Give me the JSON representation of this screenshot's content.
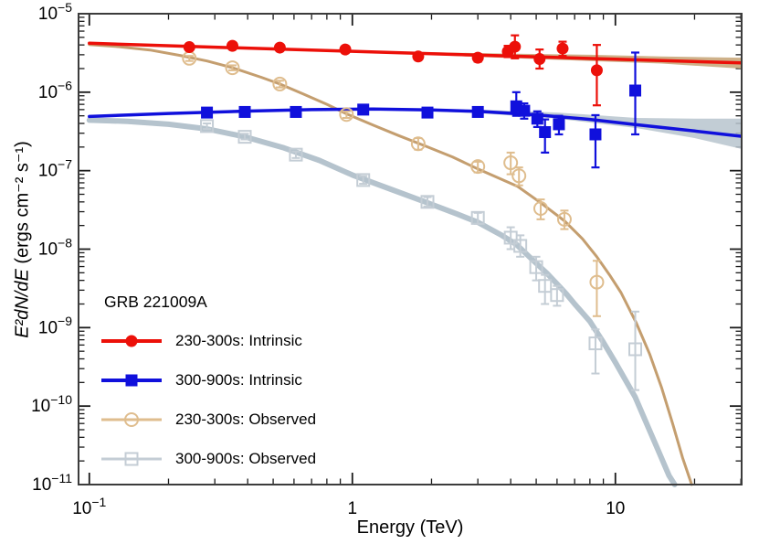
{
  "chart_data": {
    "type": "line",
    "title": "GRB 221009A",
    "xlabel": "Energy (TeV)",
    "ylabel_math": "E²dN/dE",
    "ylabel_units": " (ergs cm⁻² s⁻¹)",
    "xscale": "log",
    "yscale": "log",
    "xlim": [
      0.091,
      30.2
    ],
    "ylim": [
      1e-11,
      1e-05
    ],
    "ylim_exp": [
      -11,
      -5
    ],
    "grid": false,
    "legend_position": "inside-middle-left",
    "frame_color": "#3c3c3c",
    "tick_color": "#1a1a1a",
    "x_tick_labels": [
      {
        "value": 0.1,
        "base": "10",
        "exp": "−1"
      },
      {
        "value": 1,
        "base": "1",
        "exp": ""
      },
      {
        "value": 10,
        "base": "10",
        "exp": ""
      }
    ],
    "y_tick_labels": [
      {
        "value": 1e-05,
        "base": "10",
        "exp": "−5"
      },
      {
        "value": 1e-06,
        "base": "10",
        "exp": "−6"
      },
      {
        "value": 1e-07,
        "base": "10",
        "exp": "−7"
      },
      {
        "value": 1e-08,
        "base": "10",
        "exp": "−8"
      },
      {
        "value": 1e-09,
        "base": "10",
        "exp": "−9"
      },
      {
        "value": 1e-10,
        "base": "10",
        "exp": "−10"
      },
      {
        "value": 1e-11,
        "base": "10",
        "exp": "−11"
      }
    ],
    "series": [
      {
        "key": "intrinsic-230-300",
        "name": "230-300s: Intrinsic",
        "color": "#ec1009",
        "line_width": 3.5,
        "legend_line_width": 4,
        "marker": "circle",
        "filled": true,
        "marker_size": 13,
        "err_width": 2.2,
        "z": 3,
        "band_color": "#c9a87c",
        "band_opacity": 0.9,
        "band": [
          [
            1.2,
            3.2e-06,
            3.35e-06
          ],
          [
            3,
            2.82e-06,
            3.15e-06
          ],
          [
            8,
            2.5e-06,
            3e-06
          ],
          [
            15,
            2.32e-06,
            2.85e-06
          ],
          [
            30,
            2e-06,
            2.75e-06
          ]
        ],
        "curve": [
          [
            0.1,
            4.2e-06
          ],
          [
            0.3,
            3.75e-06
          ],
          [
            1,
            3.32e-06
          ],
          [
            3,
            2.97e-06
          ],
          [
            10,
            2.63e-06
          ],
          [
            30,
            2.36e-06
          ]
        ],
        "points": [
          [
            0.24,
            3.75e-06,
            3.5e-06,
            4e-06
          ],
          [
            0.35,
            3.9e-06,
            3.65e-06,
            4.15e-06
          ],
          [
            0.53,
            3.7e-06,
            3.45e-06,
            3.95e-06
          ],
          [
            0.94,
            3.5e-06,
            3.3e-06,
            3.75e-06
          ],
          [
            1.78,
            2.85e-06,
            2.6e-06,
            3.1e-06
          ],
          [
            3.0,
            2.75e-06,
            2.45e-06,
            3.05e-06
          ],
          [
            3.9,
            3.3e-06,
            2.8e-06,
            3.9e-06
          ],
          [
            4.15,
            3.8e-06,
            2.7e-06,
            5.3e-06
          ],
          [
            5.15,
            2.65e-06,
            2e-06,
            3.5e-06
          ],
          [
            6.3,
            3.6e-06,
            2.9e-06,
            4.4e-06
          ],
          [
            8.5,
            1.9e-06,
            6.8e-07,
            4e-06
          ]
        ]
      },
      {
        "key": "intrinsic-300-900",
        "name": "300-900s: Intrinsic",
        "color": "#1010dc",
        "line_width": 3.5,
        "legend_line_width": 4,
        "marker": "square",
        "filled": true,
        "marker_size": 13,
        "err_width": 2.2,
        "z": 4,
        "band_color": "#b7c4ce",
        "band_opacity": 0.85,
        "band": [
          [
            1.5,
            5.95e-07,
            6.2e-07
          ],
          [
            3,
            5.4e-07,
            6e-07
          ],
          [
            6,
            4.6e-07,
            5.5e-07
          ],
          [
            12,
            3.5e-07,
            4.7e-07
          ],
          [
            20,
            2.6e-07,
            4.6e-07
          ],
          [
            30,
            1.9e-07,
            4.6e-07
          ]
        ],
        "curve": [
          [
            0.1,
            4.9e-07
          ],
          [
            0.2,
            5.35e-07
          ],
          [
            0.4,
            5.75e-07
          ],
          [
            0.7,
            6e-07
          ],
          [
            1.2,
            6.1e-07
          ],
          [
            2,
            5.95e-07
          ],
          [
            3,
            5.7e-07
          ],
          [
            5,
            5.15e-07
          ],
          [
            8,
            4.5e-07
          ],
          [
            12,
            3.85e-07
          ],
          [
            20,
            3.2e-07
          ],
          [
            30,
            2.75e-07
          ]
        ],
        "points": [
          [
            0.28,
            5.5e-07,
            5.1e-07,
            5.9e-07
          ],
          [
            0.39,
            5.6e-07,
            5.2e-07,
            6e-07
          ],
          [
            0.61,
            5.6e-07,
            5.2e-07,
            6e-07
          ],
          [
            1.1,
            6e-07,
            5.6e-07,
            6.4e-07
          ],
          [
            1.93,
            5.5e-07,
            5e-07,
            6e-07
          ],
          [
            3.0,
            5.6e-07,
            5e-07,
            6.2e-07
          ],
          [
            4.2,
            6.6e-07,
            5e-07,
            1e-06
          ],
          [
            4.5,
            5.8e-07,
            4.6e-07,
            7.2e-07
          ],
          [
            5.05,
            4.6e-07,
            3.6e-07,
            5.7e-07
          ],
          [
            5.4,
            3.1e-07,
            1.7e-07,
            4.5e-07
          ],
          [
            6.1,
            3.9e-07,
            2.9e-07,
            5e-07
          ],
          [
            8.4,
            2.9e-07,
            1.1e-07,
            5.1e-07
          ],
          [
            11.9,
            1.05e-06,
            2.9e-07,
            3.2e-06
          ]
        ]
      },
      {
        "key": "observed-230-300",
        "name": "230-300s: Observed",
        "color": "#dfbd8e",
        "line_color": "#c49e6f",
        "line_width": 3,
        "legend_line_width": 3,
        "marker": "circle",
        "filled": false,
        "marker_size": 14,
        "err_width": 2,
        "z": 1,
        "curve": [
          [
            0.1,
            4.05e-06
          ],
          [
            0.13,
            3.8e-06
          ],
          [
            0.17,
            3.45e-06
          ],
          [
            0.22,
            2.95e-06
          ],
          [
            0.28,
            2.5e-06
          ],
          [
            0.35,
            2.05e-06
          ],
          [
            0.45,
            1.55e-06
          ],
          [
            0.53,
            1.27e-06
          ],
          [
            0.65,
            9.5e-07
          ],
          [
            0.8,
            7e-07
          ],
          [
            0.95,
            5.3e-07
          ],
          [
            1.2,
            3.8e-07
          ],
          [
            1.5,
            2.8e-07
          ],
          [
            1.9,
            2.05e-07
          ],
          [
            2.4,
            1.5e-07
          ],
          [
            3,
            1.05e-07
          ],
          [
            4.25,
            6.3e-08
          ],
          [
            5.2,
            3.9e-08
          ],
          [
            6.4,
            2.3e-08
          ],
          [
            7.5,
            1.35e-08
          ],
          [
            8.5,
            8e-09
          ],
          [
            9.5,
            4.7e-09
          ],
          [
            10.5,
            2.8e-09
          ],
          [
            12,
            1.15e-09
          ],
          [
            13.5,
            4.6e-10
          ],
          [
            15,
            1.7e-10
          ],
          [
            16.5,
            6e-11
          ],
          [
            18,
            2.2e-11
          ],
          [
            19.5,
            1e-11
          ]
        ],
        "points": [
          [
            0.24,
            2.7e-06,
            2.5e-06,
            2.9e-06
          ],
          [
            0.35,
            2.05e-06,
            1.9e-06,
            2.2e-06
          ],
          [
            0.53,
            1.27e-06,
            1.15e-06,
            1.4e-06
          ],
          [
            0.95,
            5.2e-07,
            4.7e-07,
            5.7e-07
          ],
          [
            1.78,
            2.2e-07,
            1.85e-07,
            2.6e-07
          ],
          [
            3.0,
            1.13e-07,
            9.5e-08,
            1.3e-07
          ],
          [
            4.0,
            1.26e-07,
            9e-08,
            1.7e-07
          ],
          [
            4.3,
            8.6e-08,
            6.5e-08,
            1.1e-07
          ],
          [
            5.2,
            3.3e-08,
            2.4e-08,
            4.3e-08
          ],
          [
            6.4,
            2.4e-08,
            1.8e-08,
            3.1e-08
          ],
          [
            8.5,
            3.8e-09,
            1.4e-09,
            7.1e-09
          ]
        ]
      },
      {
        "key": "observed-300-900",
        "name": "300-900s: Observed",
        "color": "#c4cdd5",
        "line_color": "#b5c3cd",
        "line_width": 6,
        "legend_line_width": 3,
        "marker": "square",
        "filled": false,
        "marker_size": 13,
        "err_width": 2,
        "z": 2,
        "curve": [
          [
            0.1,
            4.4e-07
          ],
          [
            0.14,
            4.25e-07
          ],
          [
            0.2,
            3.9e-07
          ],
          [
            0.28,
            3.4e-07
          ],
          [
            0.39,
            2.7e-07
          ],
          [
            0.55,
            1.95e-07
          ],
          [
            0.75,
            1.35e-07
          ],
          [
            1.0,
            8.8e-08
          ],
          [
            1.4,
            5.8e-08
          ],
          [
            1.93,
            3.9e-08
          ],
          [
            2.5,
            2.8e-08
          ],
          [
            3.0,
            2.2e-08
          ],
          [
            3.7,
            1.5e-08
          ],
          [
            4.2,
            1.15e-08
          ],
          [
            5.0,
            6.6e-09
          ],
          [
            5.5,
            4.9e-09
          ],
          [
            6.0,
            3.6e-09
          ],
          [
            6.5,
            2.7e-09
          ],
          [
            7.0,
            2e-09
          ],
          [
            8.0,
            1.2e-09
          ],
          [
            9.0,
            6.5e-10
          ],
          [
            10.0,
            3.6e-10
          ],
          [
            11.9,
            1.3e-10
          ],
          [
            13.0,
            6.5e-11
          ],
          [
            14.5,
            2.8e-11
          ],
          [
            16.0,
            1.3e-11
          ],
          [
            16.8,
            1e-11
          ]
        ],
        "points": [
          [
            0.28,
            3.7e-07,
            3.4e-07,
            4e-07
          ],
          [
            0.39,
            2.7e-07,
            2.5e-07,
            2.95e-07
          ],
          [
            0.61,
            1.6e-07,
            1.45e-07,
            1.75e-07
          ],
          [
            1.1,
            7.6e-08,
            6.8e-08,
            8.5e-08
          ],
          [
            1.93,
            4e-08,
            3.5e-08,
            4.6e-08
          ],
          [
            3.0,
            2.5e-08,
            2.1e-08,
            2.9e-08
          ],
          [
            4.0,
            1.4e-08,
            1e-08,
            1.9e-08
          ],
          [
            4.35,
            1.1e-08,
            8e-09,
            1.5e-08
          ],
          [
            5.0,
            5.9e-09,
            4e-09,
            8e-09
          ],
          [
            5.4,
            3.4e-09,
            2e-09,
            4.7e-09
          ],
          [
            6.0,
            2.6e-09,
            1.9e-09,
            3.4e-09
          ],
          [
            8.4,
            6.3e-10,
            2.6e-10,
            9.5e-10
          ],
          [
            11.9,
            5.3e-10,
            1.6e-10,
            1.6e-09
          ]
        ]
      }
    ]
  }
}
